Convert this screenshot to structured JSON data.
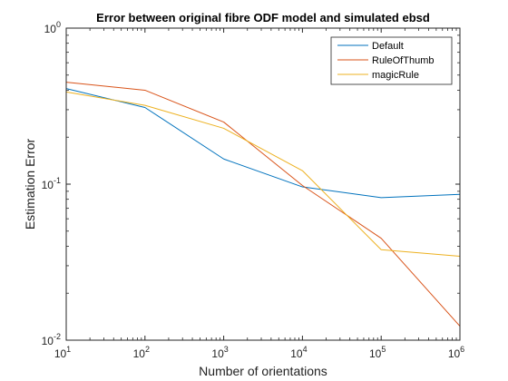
{
  "chart_data": {
    "type": "line",
    "title": "Error between original fibre ODF model and simulated ebsd",
    "xlabel": "Number of orientations",
    "ylabel": "Estimation Error",
    "xscale": "log",
    "yscale": "log",
    "xlim": [
      10,
      1000000
    ],
    "ylim": [
      0.01,
      1
    ],
    "x": [
      10,
      100,
      1000,
      10000,
      100000,
      1000000
    ],
    "xticks": [
      {
        "value": 10,
        "base": "10",
        "exp": "1"
      },
      {
        "value": 100,
        "base": "10",
        "exp": "2"
      },
      {
        "value": 1000,
        "base": "10",
        "exp": "3"
      },
      {
        "value": 10000,
        "base": "10",
        "exp": "4"
      },
      {
        "value": 100000,
        "base": "10",
        "exp": "5"
      },
      {
        "value": 1000000,
        "base": "10",
        "exp": "6"
      }
    ],
    "yticks": [
      {
        "value": 0.01,
        "base": "10",
        "exp": "-2"
      },
      {
        "value": 0.1,
        "base": "10",
        "exp": "-1"
      },
      {
        "value": 1,
        "base": "10",
        "exp": "0"
      }
    ],
    "legend_position": "top-right",
    "grid": false,
    "series": [
      {
        "name": "Default",
        "color": "#0072BD",
        "values": [
          0.41,
          0.31,
          0.145,
          0.096,
          0.082,
          0.086
        ]
      },
      {
        "name": "RuleOfThumb",
        "color": "#D95319",
        "values": [
          0.45,
          0.4,
          0.25,
          0.098,
          0.045,
          0.0123
        ]
      },
      {
        "name": "magicRule",
        "color": "#EDB120",
        "values": [
          0.39,
          0.32,
          0.228,
          0.122,
          0.038,
          0.0345
        ]
      }
    ]
  }
}
